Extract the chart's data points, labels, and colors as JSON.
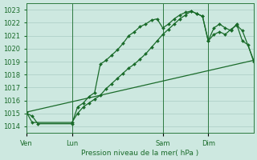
{
  "title": "",
  "xlabel": "Pression niveau de la mer( hPa )",
  "background_color": "#cde8e0",
  "grid_color": "#aaccc4",
  "line_color": "#1a6b2a",
  "spine_color": "#2d7a40",
  "ylim": [
    1013.5,
    1023.5
  ],
  "yticks": [
    1014,
    1015,
    1016,
    1017,
    1018,
    1019,
    1020,
    1021,
    1022,
    1023
  ],
  "day_labels": [
    "Ven",
    "Lun",
    "Sam",
    "Dim"
  ],
  "day_positions": [
    0,
    8,
    24,
    32
  ],
  "xlim": [
    0,
    40
  ],
  "series1_x": [
    0,
    1,
    2,
    8,
    9,
    10,
    11,
    12,
    13,
    14,
    15,
    16,
    17,
    18,
    19,
    20,
    21,
    22,
    23,
    24,
    25,
    26,
    27,
    28,
    29,
    30,
    31,
    32,
    33,
    34,
    35,
    36,
    37,
    38,
    39,
    40
  ],
  "series1_y": [
    1015.0,
    1014.8,
    1014.2,
    1014.2,
    1015.5,
    1015.8,
    1016.3,
    1016.6,
    1018.8,
    1019.1,
    1019.5,
    1019.9,
    1020.4,
    1021.0,
    1021.3,
    1021.7,
    1021.9,
    1022.2,
    1022.3,
    1021.6,
    1021.9,
    1022.3,
    1022.6,
    1022.8,
    1022.9,
    1022.7,
    1022.5,
    1020.6,
    1021.6,
    1021.9,
    1021.6,
    1021.4,
    1021.9,
    1020.6,
    1020.3,
    1019.0
  ],
  "series2_x": [
    0,
    1,
    8,
    9,
    10,
    11,
    12,
    13,
    14,
    15,
    16,
    17,
    18,
    19,
    20,
    21,
    22,
    23,
    24,
    25,
    26,
    27,
    28,
    29,
    30,
    31,
    32,
    33,
    34,
    35,
    36,
    37,
    38,
    40
  ],
  "series2_y": [
    1015.1,
    1014.3,
    1014.3,
    1015.0,
    1015.5,
    1015.8,
    1016.1,
    1016.4,
    1016.9,
    1017.3,
    1017.7,
    1018.1,
    1018.5,
    1018.8,
    1019.2,
    1019.6,
    1020.1,
    1020.6,
    1021.1,
    1021.5,
    1021.9,
    1022.3,
    1022.6,
    1022.9,
    1022.7,
    1022.5,
    1020.6,
    1021.1,
    1021.3,
    1021.1,
    1021.5,
    1021.8,
    1021.4,
    1019.1
  ],
  "series3_x": [
    0,
    40
  ],
  "series3_y": [
    1015.1,
    1019.1
  ]
}
